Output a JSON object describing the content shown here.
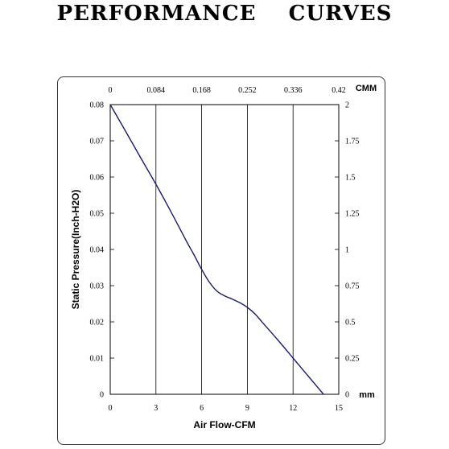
{
  "title": "PERFORMANCE    CURVES",
  "chart_data": {
    "type": "line",
    "xlabel": "Air Flow-CFM",
    "ylabel": "Static Pressure(Inch-H2O)",
    "xlim": [
      0,
      15
    ],
    "ylim": [
      0,
      0.08
    ],
    "x_ticks": [
      "0",
      "3",
      "6",
      "9",
      "12",
      "15"
    ],
    "y_ticks": [
      "0",
      "0.01",
      "0.02",
      "0.03",
      "0.04",
      "0.05",
      "0.06",
      "0.07",
      "0.08"
    ],
    "top_axis": {
      "unit": "CMM",
      "ticks": [
        "0",
        "0.084",
        "0.168",
        "0.252",
        "0.336",
        "0.42"
      ]
    },
    "right_axis": {
      "unit": "mm",
      "ticks": [
        "0",
        "0.25",
        "0.5",
        "0.75",
        "1",
        "1.25",
        "1.5",
        "1.75",
        "2"
      ]
    },
    "grid": "vertical",
    "series": [
      {
        "color": "#1a1a6e",
        "x": [
          0,
          1,
          2,
          3,
          4,
          5,
          5.5,
          6,
          6.5,
          7,
          7.5,
          8,
          8.5,
          9,
          9.5,
          10,
          11,
          12,
          13,
          14
        ],
        "y": [
          0.08,
          0.0727,
          0.0653,
          0.058,
          0.0503,
          0.0423,
          0.0385,
          0.0345,
          0.031,
          0.0285,
          0.0272,
          0.0263,
          0.0253,
          0.024,
          0.0222,
          0.0198,
          0.015,
          0.01,
          0.005,
          0.0
        ]
      }
    ]
  }
}
